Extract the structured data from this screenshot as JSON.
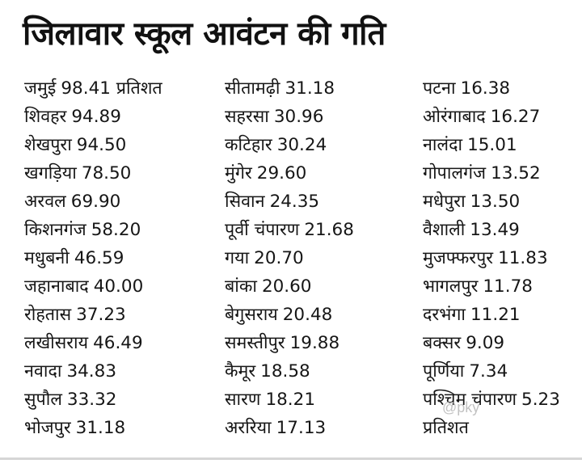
{
  "title": "जिलावार स्कूल आवंटन की गति",
  "columns": [
    [
      {
        "district": "जमुई",
        "value": "98.41 प्रतिशत"
      },
      {
        "district": "शिवहर",
        "value": "94.89"
      },
      {
        "district": "शेखपुरा",
        "value": "94.50"
      },
      {
        "district": "खगड़िया",
        "value": "78.50"
      },
      {
        "district": "अरवल",
        "value": "69.90"
      },
      {
        "district": "किशनगंज",
        "value": "58.20"
      },
      {
        "district": "मधुबनी",
        "value": "46.59"
      },
      {
        "district": "जहानाबाद",
        "value": "40.00"
      },
      {
        "district": "रोहतास",
        "value": "37.23"
      },
      {
        "district": "लखीसराय",
        "value": "46.49"
      },
      {
        "district": "नवादा",
        "value": "34.83"
      },
      {
        "district": "सुपौल",
        "value": "33.32"
      },
      {
        "district": "भोजपुर",
        "value": "31.18"
      }
    ],
    [
      {
        "district": "सीतामढ़ी",
        "value": "31.18"
      },
      {
        "district": "सहरसा",
        "value": "30.96"
      },
      {
        "district": "कटिहार",
        "value": "30.24"
      },
      {
        "district": "मुंगेर",
        "value": "29.60"
      },
      {
        "district": "सिवान",
        "value": "24.35"
      },
      {
        "district": "पूर्वी चंपारण",
        "value": "21.68"
      },
      {
        "district": "गया",
        "value": "20.70"
      },
      {
        "district": "बांका",
        "value": "20.60"
      },
      {
        "district": "बेगुसराय",
        "value": "20.48"
      },
      {
        "district": "समस्तीपुर",
        "value": "19.88"
      },
      {
        "district": "कैमूर",
        "value": "18.58"
      },
      {
        "district": "सारण",
        "value": "18.21"
      },
      {
        "district": "अररिया",
        "value": "17.13"
      }
    ],
    [
      {
        "district": "पटना",
        "value": "16.38"
      },
      {
        "district": "ओरंगाबाद",
        "value": "16.27"
      },
      {
        "district": "नालंदा",
        "value": "15.01"
      },
      {
        "district": "गोपालगंज",
        "value": "13.52"
      },
      {
        "district": "मधेपुरा",
        "value": "13.50"
      },
      {
        "district": "वैशाली",
        "value": "13.49"
      },
      {
        "district": "मुजफ्फरपुर",
        "value": "11.83"
      },
      {
        "district": "भागलपुर",
        "value": "11.78"
      },
      {
        "district": "दरभंगा",
        "value": "11.21"
      },
      {
        "district": "बक्सर",
        "value": "9.09"
      },
      {
        "district": "पूर्णिया",
        "value": "7.34"
      },
      {
        "district": "पश्चिम चंपारण",
        "value": "5.23"
      },
      {
        "district": "प्रतिशत",
        "value": ""
      }
    ]
  ],
  "watermark": "@pky"
}
